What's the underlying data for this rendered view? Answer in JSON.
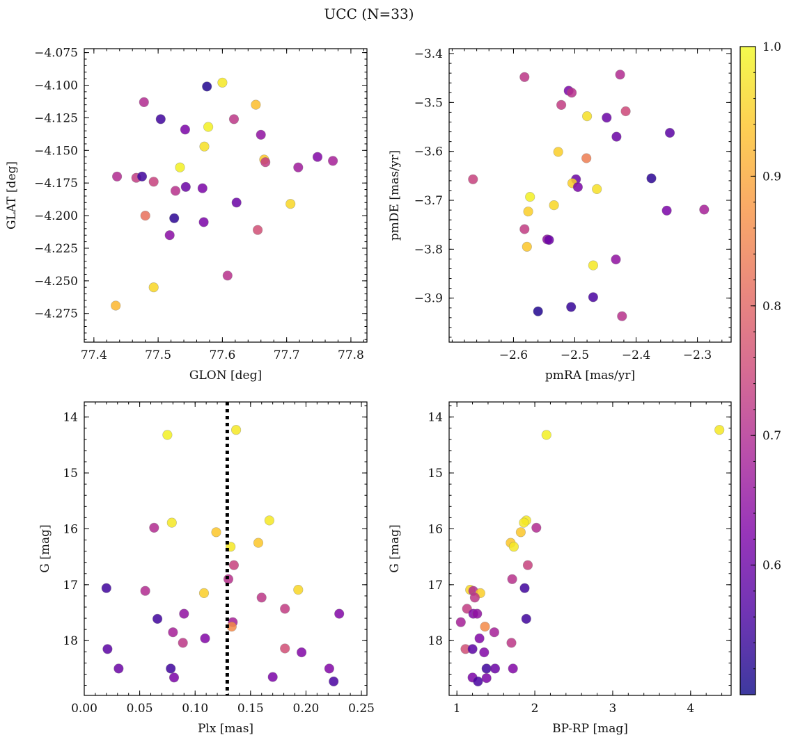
{
  "title": "UCC (N=33)",
  "colorbar": {
    "min": 0.5,
    "max": 1.0,
    "ticks": [
      0.6,
      0.7,
      0.8,
      0.9,
      1.0
    ],
    "tick_labels": [
      "0.6",
      "0.7",
      "0.8",
      "0.9",
      "1.0"
    ],
    "colormap": "plasma"
  },
  "chart_data": [
    {
      "id": "glon-glat",
      "type": "scatter",
      "xlabel": "GLON [deg]",
      "ylabel": "GLAT [deg]",
      "xlim": [
        77.385,
        77.825
      ],
      "ylim": [
        -4.297,
        -4.072
      ],
      "xticks": [
        77.4,
        77.5,
        77.6,
        77.7,
        77.8
      ],
      "xtick_labels": [
        "77.4",
        "77.5",
        "77.6",
        "77.7",
        "77.8"
      ],
      "yticks": [
        -4.075,
        -4.1,
        -4.125,
        -4.15,
        -4.175,
        -4.2,
        -4.225,
        -4.25,
        -4.275
      ],
      "ytick_labels": [
        "−4.075",
        "−4.100",
        "−4.125",
        "−4.150",
        "−4.175",
        "−4.200",
        "−4.225",
        "−4.250",
        "−4.275"
      ],
      "points": [
        {
          "x": 77.576,
          "y": -4.101,
          "c": 0.52
        },
        {
          "x": 77.6,
          "y": -4.098,
          "c": 0.98
        },
        {
          "x": 77.478,
          "y": -4.113,
          "c": 0.7
        },
        {
          "x": 77.504,
          "y": -4.126,
          "c": 0.55
        },
        {
          "x": 77.618,
          "y": -4.126,
          "c": 0.72
        },
        {
          "x": 77.652,
          "y": -4.115,
          "c": 0.93
        },
        {
          "x": 77.578,
          "y": -4.132,
          "c": 0.99
        },
        {
          "x": 77.542,
          "y": -4.134,
          "c": 0.62
        },
        {
          "x": 77.66,
          "y": -4.138,
          "c": 0.65
        },
        {
          "x": 77.572,
          "y": -4.147,
          "c": 0.97
        },
        {
          "x": 77.436,
          "y": -4.17,
          "c": 0.7
        },
        {
          "x": 77.466,
          "y": -4.171,
          "c": 0.73
        },
        {
          "x": 77.475,
          "y": -4.17,
          "c": 0.55
        },
        {
          "x": 77.493,
          "y": -4.174,
          "c": 0.74
        },
        {
          "x": 77.534,
          "y": -4.163,
          "c": 0.99
        },
        {
          "x": 77.665,
          "y": -4.157,
          "c": 0.94
        },
        {
          "x": 77.667,
          "y": -4.159,
          "c": 0.73
        },
        {
          "x": 77.718,
          "y": -4.163,
          "c": 0.67
        },
        {
          "x": 77.748,
          "y": -4.155,
          "c": 0.63
        },
        {
          "x": 77.772,
          "y": -4.158,
          "c": 0.68
        },
        {
          "x": 77.527,
          "y": -4.181,
          "c": 0.71
        },
        {
          "x": 77.543,
          "y": -4.178,
          "c": 0.6
        },
        {
          "x": 77.569,
          "y": -4.179,
          "c": 0.62
        },
        {
          "x": 77.622,
          "y": -4.19,
          "c": 0.6
        },
        {
          "x": 77.706,
          "y": -4.191,
          "c": 0.96
        },
        {
          "x": 77.48,
          "y": -4.2,
          "c": 0.82
        },
        {
          "x": 77.525,
          "y": -4.202,
          "c": 0.53
        },
        {
          "x": 77.571,
          "y": -4.205,
          "c": 0.62
        },
        {
          "x": 77.655,
          "y": -4.211,
          "c": 0.76
        },
        {
          "x": 77.518,
          "y": -4.215,
          "c": 0.64
        },
        {
          "x": 77.608,
          "y": -4.246,
          "c": 0.71
        },
        {
          "x": 77.493,
          "y": -4.255,
          "c": 0.96
        },
        {
          "x": 77.434,
          "y": -4.269,
          "c": 0.92
        }
      ]
    },
    {
      "id": "pmra-pmde",
      "type": "scatter",
      "xlabel": "pmRA [mas/yr]",
      "ylabel": "pmDE [mas/yr]",
      "xlim": [
        -2.705,
        -2.245
      ],
      "ylim": [
        -3.99,
        -3.39
      ],
      "xticks": [
        -2.6,
        -2.5,
        -2.4,
        -2.3
      ],
      "xtick_labels": [
        "−2.6",
        "−2.5",
        "−2.4",
        "−2.3"
      ],
      "yticks": [
        -3.4,
        -3.5,
        -3.6,
        -3.7,
        -3.8,
        -3.9
      ],
      "ytick_labels": [
        "−3.4",
        "−3.5",
        "−3.6",
        "−3.7",
        "−3.8",
        "−3.9"
      ],
      "points": [
        {
          "x": -2.582,
          "y": -3.448,
          "c": 0.72
        },
        {
          "x": -2.426,
          "y": -3.443,
          "c": 0.7
        },
        {
          "x": -2.51,
          "y": -3.476,
          "c": 0.62
        },
        {
          "x": -2.505,
          "y": -3.48,
          "c": 0.71
        },
        {
          "x": -2.522,
          "y": -3.505,
          "c": 0.73
        },
        {
          "x": -2.417,
          "y": -3.518,
          "c": 0.75
        },
        {
          "x": -2.48,
          "y": -3.528,
          "c": 0.97
        },
        {
          "x": -2.448,
          "y": -3.531,
          "c": 0.6
        },
        {
          "x": -2.432,
          "y": -3.57,
          "c": 0.6
        },
        {
          "x": -2.345,
          "y": -3.562,
          "c": 0.58
        },
        {
          "x": -2.527,
          "y": -3.601,
          "c": 0.95
        },
        {
          "x": -2.481,
          "y": -3.614,
          "c": 0.84
        },
        {
          "x": -2.666,
          "y": -3.657,
          "c": 0.74
        },
        {
          "x": -2.375,
          "y": -3.655,
          "c": 0.53
        },
        {
          "x": -2.498,
          "y": -3.657,
          "c": 0.6
        },
        {
          "x": -2.504,
          "y": -3.665,
          "c": 0.95
        },
        {
          "x": -2.495,
          "y": -3.673,
          "c": 0.62
        },
        {
          "x": -2.464,
          "y": -3.677,
          "c": 0.97
        },
        {
          "x": -2.573,
          "y": -3.693,
          "c": 0.99
        },
        {
          "x": -2.534,
          "y": -3.71,
          "c": 0.96
        },
        {
          "x": -2.576,
          "y": -3.723,
          "c": 0.95
        },
        {
          "x": -2.35,
          "y": -3.721,
          "c": 0.62
        },
        {
          "x": -2.289,
          "y": -3.719,
          "c": 0.68
        },
        {
          "x": -2.582,
          "y": -3.759,
          "c": 0.73
        },
        {
          "x": -2.545,
          "y": -3.78,
          "c": 0.65
        },
        {
          "x": -2.542,
          "y": -3.781,
          "c": 0.6
        },
        {
          "x": -2.578,
          "y": -3.795,
          "c": 0.94
        },
        {
          "x": -2.433,
          "y": -3.821,
          "c": 0.65
        },
        {
          "x": -2.47,
          "y": -3.833,
          "c": 0.98
        },
        {
          "x": -2.47,
          "y": -3.898,
          "c": 0.56
        },
        {
          "x": -2.506,
          "y": -3.918,
          "c": 0.54
        },
        {
          "x": -2.56,
          "y": -3.927,
          "c": 0.52
        },
        {
          "x": -2.423,
          "y": -3.937,
          "c": 0.71
        }
      ]
    },
    {
      "id": "plx-g",
      "type": "scatter",
      "xlabel": "Plx [mas]",
      "ylabel": "G [mag]",
      "xlim": [
        0.0,
        0.255
      ],
      "ylim": [
        18.98,
        13.73
      ],
      "xticks": [
        0.0,
        0.05,
        0.1,
        0.15,
        0.2,
        0.25
      ],
      "xtick_labels": [
        "0.00",
        "0.05",
        "0.10",
        "0.15",
        "0.20",
        "0.25"
      ],
      "yticks": [
        14,
        15,
        16,
        17,
        18
      ],
      "ytick_labels": [
        "14",
        "15",
        "16",
        "17",
        "18"
      ],
      "vline": {
        "x": 0.129,
        "style": "dotted"
      },
      "points": [
        {
          "x": 0.075,
          "y": 14.32,
          "c": 0.99
        },
        {
          "x": 0.137,
          "y": 14.23,
          "c": 0.98
        },
        {
          "x": 0.063,
          "y": 15.98,
          "c": 0.7
        },
        {
          "x": 0.079,
          "y": 15.89,
          "c": 0.98
        },
        {
          "x": 0.167,
          "y": 15.85,
          "c": 0.98
        },
        {
          "x": 0.119,
          "y": 16.06,
          "c": 0.94
        },
        {
          "x": 0.132,
          "y": 16.32,
          "c": 0.98
        },
        {
          "x": 0.157,
          "y": 16.25,
          "c": 0.94
        },
        {
          "x": 0.135,
          "y": 16.65,
          "c": 0.74
        },
        {
          "x": 0.13,
          "y": 16.9,
          "c": 0.71
        },
        {
          "x": 0.02,
          "y": 17.06,
          "c": 0.55
        },
        {
          "x": 0.055,
          "y": 17.11,
          "c": 0.7
        },
        {
          "x": 0.108,
          "y": 17.15,
          "c": 0.95
        },
        {
          "x": 0.193,
          "y": 17.09,
          "c": 0.96
        },
        {
          "x": 0.16,
          "y": 17.23,
          "c": 0.72
        },
        {
          "x": 0.09,
          "y": 17.52,
          "c": 0.65
        },
        {
          "x": 0.181,
          "y": 17.43,
          "c": 0.73
        },
        {
          "x": 0.23,
          "y": 17.52,
          "c": 0.63
        },
        {
          "x": 0.066,
          "y": 17.61,
          "c": 0.55
        },
        {
          "x": 0.134,
          "y": 17.67,
          "c": 0.68
        },
        {
          "x": 0.133,
          "y": 17.75,
          "c": 0.86
        },
        {
          "x": 0.08,
          "y": 17.85,
          "c": 0.68
        },
        {
          "x": 0.109,
          "y": 17.96,
          "c": 0.63
        },
        {
          "x": 0.089,
          "y": 18.04,
          "c": 0.72
        },
        {
          "x": 0.021,
          "y": 18.15,
          "c": 0.58
        },
        {
          "x": 0.181,
          "y": 18.14,
          "c": 0.76
        },
        {
          "x": 0.196,
          "y": 18.21,
          "c": 0.63
        },
        {
          "x": 0.031,
          "y": 18.5,
          "c": 0.6
        },
        {
          "x": 0.078,
          "y": 18.5,
          "c": 0.55
        },
        {
          "x": 0.221,
          "y": 18.5,
          "c": 0.63
        },
        {
          "x": 0.081,
          "y": 18.66,
          "c": 0.62
        },
        {
          "x": 0.17,
          "y": 18.65,
          "c": 0.62
        },
        {
          "x": 0.225,
          "y": 18.73,
          "c": 0.56
        }
      ]
    },
    {
      "id": "bprp-g",
      "type": "scatter",
      "xlabel": "BP-RP [mag]",
      "ylabel": "G [mag]",
      "xlim": [
        0.9,
        4.52
      ],
      "ylim": [
        18.98,
        13.73
      ],
      "xticks": [
        1,
        2,
        3,
        4
      ],
      "xtick_labels": [
        "1",
        "2",
        "3",
        "4"
      ],
      "yticks": [
        14,
        15,
        16,
        17,
        18
      ],
      "ytick_labels": [
        "14",
        "15",
        "16",
        "17",
        "18"
      ],
      "points": [
        {
          "x": 4.37,
          "y": 14.23,
          "c": 0.98
        },
        {
          "x": 2.15,
          "y": 14.32,
          "c": 0.99
        },
        {
          "x": 1.89,
          "y": 15.85,
          "c": 0.98
        },
        {
          "x": 1.86,
          "y": 15.89,
          "c": 0.98
        },
        {
          "x": 2.02,
          "y": 15.98,
          "c": 0.7
        },
        {
          "x": 1.82,
          "y": 16.06,
          "c": 0.94
        },
        {
          "x": 1.69,
          "y": 16.25,
          "c": 0.94
        },
        {
          "x": 1.73,
          "y": 16.32,
          "c": 0.98
        },
        {
          "x": 1.91,
          "y": 16.65,
          "c": 0.74
        },
        {
          "x": 1.71,
          "y": 16.9,
          "c": 0.71
        },
        {
          "x": 1.87,
          "y": 17.06,
          "c": 0.55
        },
        {
          "x": 1.17,
          "y": 17.09,
          "c": 0.96
        },
        {
          "x": 1.21,
          "y": 17.11,
          "c": 0.7
        },
        {
          "x": 1.3,
          "y": 17.15,
          "c": 0.95
        },
        {
          "x": 1.23,
          "y": 17.23,
          "c": 0.72
        },
        {
          "x": 1.13,
          "y": 17.43,
          "c": 0.73
        },
        {
          "x": 1.21,
          "y": 17.52,
          "c": 0.63
        },
        {
          "x": 1.26,
          "y": 17.52,
          "c": 0.65
        },
        {
          "x": 1.89,
          "y": 17.61,
          "c": 0.55
        },
        {
          "x": 1.05,
          "y": 17.67,
          "c": 0.68
        },
        {
          "x": 1.36,
          "y": 17.75,
          "c": 0.86
        },
        {
          "x": 1.48,
          "y": 17.85,
          "c": 0.68
        },
        {
          "x": 1.29,
          "y": 17.96,
          "c": 0.63
        },
        {
          "x": 1.7,
          "y": 18.04,
          "c": 0.72
        },
        {
          "x": 1.11,
          "y": 18.15,
          "c": 0.76
        },
        {
          "x": 1.2,
          "y": 18.15,
          "c": 0.58
        },
        {
          "x": 1.35,
          "y": 18.21,
          "c": 0.63
        },
        {
          "x": 1.38,
          "y": 18.5,
          "c": 0.55
        },
        {
          "x": 1.49,
          "y": 18.5,
          "c": 0.6
        },
        {
          "x": 1.72,
          "y": 18.5,
          "c": 0.63
        },
        {
          "x": 1.2,
          "y": 18.66,
          "c": 0.62
        },
        {
          "x": 1.38,
          "y": 18.67,
          "c": 0.62
        },
        {
          "x": 1.27,
          "y": 18.73,
          "c": 0.56
        }
      ]
    }
  ]
}
